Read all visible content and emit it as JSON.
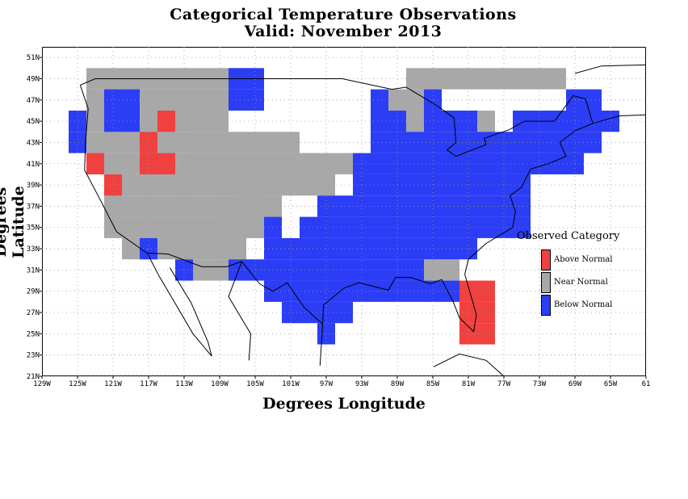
{
  "title_line1": "Categorical Temperature Observations",
  "title_line2": "Valid: November 2013",
  "xaxis_title": "Degrees Longitude",
  "yaxis_title": "Degrees Latitude",
  "lon_ticks": [
    "129W",
    "125W",
    "121W",
    "117W",
    "113W",
    "109W",
    "105W",
    "101W",
    "97W",
    "93W",
    "89W",
    "85W",
    "81W",
    "77W",
    "73W",
    "69W",
    "65W",
    "61"
  ],
  "lat_ticks": [
    "51N",
    "49N",
    "47N",
    "45N",
    "43N",
    "41N",
    "39N",
    "37N",
    "35N",
    "33N",
    "31N",
    "29N",
    "27N",
    "25N",
    "23N",
    "21N"
  ],
  "legend": {
    "title": "Observed Category",
    "items": [
      {
        "label": "Above Normal",
        "color": "#f04040"
      },
      {
        "label": "Near Normal",
        "color": "#a8a8a8"
      },
      {
        "label": "Below Normal",
        "color": "#2b3df5"
      }
    ]
  },
  "colors": {
    "above": "#f04040",
    "near": "#a8a8a8",
    "below": "#2b3df5"
  },
  "chart_data": {
    "type": "heatmap",
    "title": "Categorical Temperature Observations",
    "subtitle": "Valid: November 2013",
    "xlabel": "Degrees Longitude",
    "ylabel": "Degrees Latitude",
    "xlim": [
      -129,
      -61
    ],
    "ylim": [
      21,
      52
    ],
    "cell_size_deg": 2,
    "categories": [
      "Above Normal",
      "Near Normal",
      "Below Normal"
    ],
    "cells": [
      {
        "lon": -124,
        "lat": 48,
        "cat": "Near Normal",
        "w": 18
      },
      {
        "lon": -88,
        "lat": 48,
        "cat": "Near Normal",
        "w": 18
      },
      {
        "lon": -124,
        "lat": 46,
        "cat": "Near Normal",
        "w": 16
      },
      {
        "lon": -90,
        "lat": 46,
        "cat": "Near Normal",
        "w": 4
      },
      {
        "lon": -124,
        "lat": 44,
        "cat": "Near Normal",
        "w": 16
      },
      {
        "lon": -90,
        "lat": 44,
        "cat": "Near Normal",
        "w": 6
      },
      {
        "lon": -124,
        "lat": 42,
        "cat": "Near Normal",
        "w": 16
      },
      {
        "lon": -124,
        "lat": 40,
        "cat": "Near Normal",
        "w": 12
      },
      {
        "lon": -112,
        "lat": 40,
        "cat": "Near Normal",
        "w": 18
      },
      {
        "lon": -122,
        "lat": 38,
        "cat": "Near Normal",
        "w": 8
      },
      {
        "lon": -114,
        "lat": 38,
        "cat": "Near Normal",
        "w": 12
      },
      {
        "lon": -122,
        "lat": 36,
        "cat": "Near Normal",
        "w": 12
      },
      {
        "lon": -110,
        "lat": 36,
        "cat": "Near Normal",
        "w": 6
      },
      {
        "lon": -122,
        "lat": 34,
        "cat": "Near Normal",
        "w": 10
      },
      {
        "lon": -112,
        "lat": 34,
        "cat": "Near Normal",
        "w": 6
      },
      {
        "lon": -120,
        "lat": 32,
        "cat": "Near Normal",
        "w": 12
      },
      {
        "lon": -108,
        "lat": 32,
        "cat": "Near Normal",
        "w": 2
      },
      {
        "lon": -112,
        "lat": 30,
        "cat": "Near Normal",
        "w": 6
      },
      {
        "lon": -108,
        "lat": 34,
        "cat": "Near Normal",
        "w": 2
      },
      {
        "lon": -106,
        "lat": 34,
        "cat": "Near Normal",
        "w": 2
      },
      {
        "lon": -106,
        "lat": 36,
        "cat": "Near Normal",
        "w": 2
      },
      {
        "lon": -104,
        "lat": 36,
        "cat": "Near Normal",
        "w": 2
      },
      {
        "lon": -108,
        "lat": 38,
        "cat": "Near Normal",
        "w": 12
      },
      {
        "lon": -86,
        "lat": 30,
        "cat": "Near Normal",
        "w": 2
      },
      {
        "lon": -84,
        "lat": 30,
        "cat": "Near Normal",
        "w": 2
      },
      {
        "lon": -80,
        "lat": 44,
        "cat": "Near Normal",
        "w": 2
      },
      {
        "lon": -112,
        "lat": 42,
        "cat": "Near Normal",
        "w": 12
      },
      {
        "lon": -100,
        "lat": 40,
        "cat": "Near Normal",
        "w": 2
      },
      {
        "lon": -108,
        "lat": 48,
        "cat": "Below Normal",
        "w": 4
      },
      {
        "lon": -108,
        "lat": 46,
        "cat": "Below Normal",
        "w": 4
      },
      {
        "lon": -122,
        "lat": 46,
        "cat": "Below Normal",
        "w": 4
      },
      {
        "lon": -122,
        "lat": 44,
        "cat": "Below Normal",
        "w": 4
      },
      {
        "lon": -126,
        "lat": 44,
        "cat": "Below Normal",
        "w": 2
      },
      {
        "lon": -126,
        "lat": 42,
        "cat": "Below Normal",
        "w": 2
      },
      {
        "lon": -92,
        "lat": 46,
        "cat": "Below Normal",
        "w": 2
      },
      {
        "lon": -86,
        "lat": 46,
        "cat": "Below Normal",
        "w": 2
      },
      {
        "lon": -92,
        "lat": 44,
        "cat": "Below Normal",
        "w": 4
      },
      {
        "lon": -86,
        "lat": 44,
        "cat": "Below Normal",
        "w": 6
      },
      {
        "lon": -76,
        "lat": 44,
        "cat": "Below Normal",
        "w": 4
      },
      {
        "lon": -70,
        "lat": 46,
        "cat": "Below Normal",
        "w": 4
      },
      {
        "lon": -72,
        "lat": 44,
        "cat": "Below Normal",
        "w": 8
      },
      {
        "lon": -92,
        "lat": 42,
        "cat": "Below Normal",
        "w": 20
      },
      {
        "lon": -72,
        "lat": 42,
        "cat": "Below Normal",
        "w": 6
      },
      {
        "lon": -94,
        "lat": 40,
        "cat": "Below Normal",
        "w": 22
      },
      {
        "lon": -72,
        "lat": 40,
        "cat": "Below Normal",
        "w": 4
      },
      {
        "lon": -94,
        "lat": 38,
        "cat": "Below Normal",
        "w": 20
      },
      {
        "lon": -98,
        "lat": 36,
        "cat": "Below Normal",
        "w": 24
      },
      {
        "lon": -100,
        "lat": 34,
        "cat": "Below Normal",
        "w": 26
      },
      {
        "lon": -104,
        "lat": 34,
        "cat": "Below Normal",
        "w": 2
      },
      {
        "lon": -104,
        "lat": 32,
        "cat": "Below Normal",
        "w": 24
      },
      {
        "lon": -104,
        "lat": 30,
        "cat": "Below Normal",
        "w": 18
      },
      {
        "lon": -108,
        "lat": 30,
        "cat": "Below Normal",
        "w": 4
      },
      {
        "lon": -112,
        "lat": 30,
        "cat": "Below Normal",
        "w": 0
      },
      {
        "lon": -114,
        "lat": 30,
        "cat": "Below Normal",
        "w": 2
      },
      {
        "lon": -104,
        "lat": 28,
        "cat": "Below Normal",
        "w": 20
      },
      {
        "lon": -84,
        "lat": 28,
        "cat": "Below Normal",
        "w": 2
      },
      {
        "lon": -102,
        "lat": 26,
        "cat": "Below Normal",
        "w": 8
      },
      {
        "lon": -98,
        "lat": 24,
        "cat": "Below Normal",
        "w": 2
      },
      {
        "lon": -118,
        "lat": 32,
        "cat": "Below Normal",
        "w": 2
      },
      {
        "lon": -116,
        "lat": 44,
        "cat": "Above Normal",
        "w": 2
      },
      {
        "lon": -118,
        "lat": 42,
        "cat": "Above Normal",
        "w": 2
      },
      {
        "lon": -118,
        "lat": 40,
        "cat": "Above Normal",
        "w": 4
      },
      {
        "lon": -124,
        "lat": 40,
        "cat": "Above Normal",
        "w": 2
      },
      {
        "lon": -122,
        "lat": 38,
        "cat": "Above Normal",
        "w": 2
      },
      {
        "lon": -82,
        "lat": 28,
        "cat": "Above Normal",
        "w": 4
      },
      {
        "lon": -82,
        "lat": 26,
        "cat": "Above Normal",
        "w": 4
      },
      {
        "lon": -82,
        "lat": 24,
        "cat": "Above Normal",
        "w": 4
      }
    ]
  }
}
